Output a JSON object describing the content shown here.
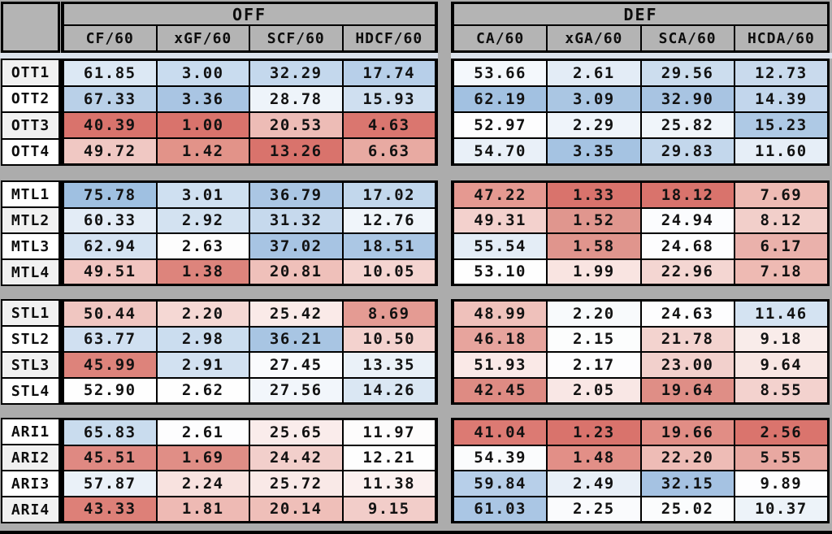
{
  "palette": {
    "canvas": "#acacac",
    "header_bg": "#b4b4b4",
    "grid_line": "#000000",
    "text": "#121212",
    "gap_strip": "#dbe2ec",
    "strong_blue": "#9fc0e1",
    "strong_red": "#d9736c",
    "neutral_white": "#fdfdfe",
    "label_bg_gray": "#f1f1f1",
    "label_bg_white": "#ffffff"
  },
  "header": {
    "corner_label": "",
    "groups": [
      {
        "label": "OFF",
        "columns": [
          "CF/60",
          "xGF/60",
          "SCF/60",
          "HDCF/60"
        ]
      },
      {
        "label": "DEF",
        "columns": [
          "CA/60",
          "xGA/60",
          "SCA/60",
          "HCDA/60"
        ]
      }
    ]
  },
  "blocks": [
    {
      "team": "OTT",
      "rows": [
        {
          "label": "OTT1",
          "label_bg": "#f1f1f1",
          "off": [
            {
              "v": "61.85",
              "c": "#dce8f4"
            },
            {
              "v": "3.00",
              "c": "#c9dcef"
            },
            {
              "v": "32.29",
              "c": "#c4d8ed"
            },
            {
              "v": "17.74",
              "c": "#b7cfe9"
            }
          ],
          "def": [
            {
              "v": "53.66",
              "c": "#f4f8fc"
            },
            {
              "v": "2.61",
              "c": "#e3ecf6"
            },
            {
              "v": "29.56",
              "c": "#ccddee"
            },
            {
              "v": "12.73",
              "c": "#c9daed"
            }
          ]
        },
        {
          "label": "OTT2",
          "label_bg": "#ffffff",
          "off": [
            {
              "v": "67.33",
              "c": "#b9d0e8"
            },
            {
              "v": "3.36",
              "c": "#a9c5e3"
            },
            {
              "v": "28.78",
              "c": "#eef4fa"
            },
            {
              "v": "15.93",
              "c": "#cfdff0"
            }
          ],
          "def": [
            {
              "v": "62.19",
              "c": "#a2c1e1"
            },
            {
              "v": "3.09",
              "c": "#aac6e3"
            },
            {
              "v": "32.90",
              "c": "#a8c4e2"
            },
            {
              "v": "14.39",
              "c": "#c2d6ec"
            }
          ]
        },
        {
          "label": "OTT3",
          "label_bg": "#f1f1f1",
          "off": [
            {
              "v": "40.39",
              "c": "#d9736c"
            },
            {
              "v": "1.00",
              "c": "#d9736c"
            },
            {
              "v": "20.53",
              "c": "#edbcb6"
            },
            {
              "v": "4.63",
              "c": "#da766f"
            }
          ],
          "def": [
            {
              "v": "52.97",
              "c": "#fdfdfe"
            },
            {
              "v": "2.29",
              "c": "#eff4fa"
            },
            {
              "v": "25.82",
              "c": "#f0f5fa"
            },
            {
              "v": "15.23",
              "c": "#aec9e5"
            }
          ]
        },
        {
          "label": "OTT4",
          "label_bg": "#ffffff",
          "off": [
            {
              "v": "49.72",
              "c": "#f0c8c3"
            },
            {
              "v": "1.42",
              "c": "#e29389"
            },
            {
              "v": "13.26",
              "c": "#d9736c"
            },
            {
              "v": "6.63",
              "c": "#e8aaa2"
            }
          ],
          "def": [
            {
              "v": "54.70",
              "c": "#e9f0f8"
            },
            {
              "v": "3.35",
              "c": "#a5c3e2"
            },
            {
              "v": "29.83",
              "c": "#c3d7ec"
            },
            {
              "v": "11.60",
              "c": "#e6eef7"
            }
          ]
        }
      ]
    },
    {
      "team": "MTL",
      "rows": [
        {
          "label": "MTL1",
          "label_bg": "#ffffff",
          "off": [
            {
              "v": "75.78",
              "c": "#9fc0e1"
            },
            {
              "v": "3.01",
              "c": "#cfe0f1"
            },
            {
              "v": "36.79",
              "c": "#aac6e4"
            },
            {
              "v": "17.02",
              "c": "#c2d7ec"
            }
          ],
          "def": [
            {
              "v": "47.22",
              "c": "#e59991"
            },
            {
              "v": "1.33",
              "c": "#d9736c"
            },
            {
              "v": "18.12",
              "c": "#d9736c"
            },
            {
              "v": "7.69",
              "c": "#eebbb4"
            }
          ]
        },
        {
          "label": "MTL2",
          "label_bg": "#f1f1f1",
          "off": [
            {
              "v": "60.33",
              "c": "#e3ecf6"
            },
            {
              "v": "2.92",
              "c": "#d3e2f1"
            },
            {
              "v": "31.32",
              "c": "#c6d9ed"
            },
            {
              "v": "12.76",
              "c": "#f0f5fa"
            }
          ],
          "def": [
            {
              "v": "49.31",
              "c": "#f3d1cd"
            },
            {
              "v": "1.52",
              "c": "#e0968e"
            },
            {
              "v": "24.94",
              "c": "#fbfcfe"
            },
            {
              "v": "8.12",
              "c": "#f2cfca"
            }
          ]
        },
        {
          "label": "MTL3",
          "label_bg": "#ffffff",
          "off": [
            {
              "v": "62.94",
              "c": "#d4e3f2"
            },
            {
              "v": "2.63",
              "c": "#fdfdfd"
            },
            {
              "v": "37.02",
              "c": "#a7c4e3"
            },
            {
              "v": "18.51",
              "c": "#abc7e4"
            }
          ],
          "def": [
            {
              "v": "55.54",
              "c": "#e4edf6"
            },
            {
              "v": "1.58",
              "c": "#e0958d"
            },
            {
              "v": "24.68",
              "c": "#fdfdfe"
            },
            {
              "v": "6.17",
              "c": "#eab1ab"
            }
          ]
        },
        {
          "label": "MTL4",
          "label_bg": "#f1f1f1",
          "off": [
            {
              "v": "49.51",
              "c": "#f1c5c0"
            },
            {
              "v": "1.38",
              "c": "#dd847c"
            },
            {
              "v": "20.81",
              "c": "#efc0ba"
            },
            {
              "v": "10.05",
              "c": "#f4d4d0"
            }
          ],
          "def": [
            {
              "v": "53.10",
              "c": "#fefefe"
            },
            {
              "v": "1.99",
              "c": "#f9e4e1"
            },
            {
              "v": "22.96",
              "c": "#f4d6d2"
            },
            {
              "v": "7.18",
              "c": "#eebab3"
            }
          ]
        }
      ]
    },
    {
      "team": "STL",
      "rows": [
        {
          "label": "STL1",
          "label_bg": "#f1f1f1",
          "off": [
            {
              "v": "50.44",
              "c": "#f0c6c1"
            },
            {
              "v": "2.20",
              "c": "#f5d8d4"
            },
            {
              "v": "25.42",
              "c": "#faeae8"
            },
            {
              "v": "8.69",
              "c": "#e49b93"
            }
          ],
          "def": [
            {
              "v": "48.99",
              "c": "#efc1bb"
            },
            {
              "v": "2.20",
              "c": "#f8fafc"
            },
            {
              "v": "24.63",
              "c": "#fdfdfe"
            },
            {
              "v": "11.46",
              "c": "#d4e3f2"
            }
          ]
        },
        {
          "label": "STL2",
          "label_bg": "#ffffff",
          "off": [
            {
              "v": "63.77",
              "c": "#d0e0f1"
            },
            {
              "v": "2.98",
              "c": "#cbddef"
            },
            {
              "v": "36.21",
              "c": "#a8c5e3"
            },
            {
              "v": "10.50",
              "c": "#f3d2ce"
            }
          ],
          "def": [
            {
              "v": "46.18",
              "c": "#e7a49d"
            },
            {
              "v": "2.15",
              "c": "#fcfdfd"
            },
            {
              "v": "21.78",
              "c": "#f3d3cf"
            },
            {
              "v": "9.18",
              "c": "#f9ecea"
            }
          ]
        },
        {
          "label": "STL3",
          "label_bg": "#f1f1f1",
          "off": [
            {
              "v": "45.99",
              "c": "#dd837b"
            },
            {
              "v": "2.91",
              "c": "#d2e1f1"
            },
            {
              "v": "27.45",
              "c": "#fafbfd"
            },
            {
              "v": "13.35",
              "c": "#eaf1f8"
            }
          ],
          "def": [
            {
              "v": "51.93",
              "c": "#fae9e7"
            },
            {
              "v": "2.17",
              "c": "#fdfdfe"
            },
            {
              "v": "23.00",
              "c": "#f2d0cc"
            },
            {
              "v": "9.64",
              "c": "#f8e6e3"
            }
          ]
        },
        {
          "label": "STL4",
          "label_bg": "#ffffff",
          "off": [
            {
              "v": "52.90",
              "c": "#fefefe"
            },
            {
              "v": "2.62",
              "c": "#fefefe"
            },
            {
              "v": "27.56",
              "c": "#f2f6fb"
            },
            {
              "v": "14.26",
              "c": "#dae7f3"
            }
          ],
          "def": [
            {
              "v": "42.45",
              "c": "#de8b83"
            },
            {
              "v": "2.05",
              "c": "#f9e7e5"
            },
            {
              "v": "19.64",
              "c": "#df8e86"
            },
            {
              "v": "8.55",
              "c": "#f3d2ce"
            }
          ]
        }
      ]
    },
    {
      "team": "ARI",
      "rows": [
        {
          "label": "ARI1",
          "label_bg": "#ffffff",
          "off": [
            {
              "v": "65.83",
              "c": "#c9dcee"
            },
            {
              "v": "2.61",
              "c": "#fdfdfe"
            },
            {
              "v": "25.65",
              "c": "#faeceb"
            },
            {
              "v": "11.97",
              "c": "#fdfcfc"
            }
          ],
          "def": [
            {
              "v": "41.04",
              "c": "#dc7a73"
            },
            {
              "v": "1.23",
              "c": "#d9736c"
            },
            {
              "v": "19.66",
              "c": "#e18d85"
            },
            {
              "v": "2.56",
              "c": "#da746d"
            }
          ]
        },
        {
          "label": "ARI2",
          "label_bg": "#f1f1f1",
          "off": [
            {
              "v": "45.51",
              "c": "#df8982"
            },
            {
              "v": "1.69",
              "c": "#e08e86"
            },
            {
              "v": "24.42",
              "c": "#f2cfcb"
            },
            {
              "v": "12.21",
              "c": "#fefefe"
            }
          ],
          "def": [
            {
              "v": "54.39",
              "c": "#fbfcfd"
            },
            {
              "v": "1.48",
              "c": "#e28f87"
            },
            {
              "v": "22.20",
              "c": "#eebcb6"
            },
            {
              "v": "5.55",
              "c": "#e8a8a1"
            }
          ]
        },
        {
          "label": "ARI3",
          "label_bg": "#ffffff",
          "off": [
            {
              "v": "57.87",
              "c": "#eaf1f8"
            },
            {
              "v": "2.24",
              "c": "#f8e2df"
            },
            {
              "v": "25.72",
              "c": "#f9e9e7"
            },
            {
              "v": "11.38",
              "c": "#fbf0ef"
            }
          ],
          "def": [
            {
              "v": "59.84",
              "c": "#b7cfe9"
            },
            {
              "v": "2.49",
              "c": "#e8eff7"
            },
            {
              "v": "32.15",
              "c": "#a5c2e2"
            },
            {
              "v": "9.89",
              "c": "#fdfdfe"
            }
          ]
        },
        {
          "label": "ARI4",
          "label_bg": "#f1f1f1",
          "off": [
            {
              "v": "43.33",
              "c": "#dd8078"
            },
            {
              "v": "1.81",
              "c": "#eebab4"
            },
            {
              "v": "20.14",
              "c": "#efbfb9"
            },
            {
              "v": "9.15",
              "c": "#f2cdc9"
            }
          ],
          "def": [
            {
              "v": "61.03",
              "c": "#aac6e4"
            },
            {
              "v": "2.25",
              "c": "#fafbfd"
            },
            {
              "v": "25.02",
              "c": "#fbfcfd"
            },
            {
              "v": "10.37",
              "c": "#edf3f9"
            }
          ]
        }
      ]
    }
  ],
  "chart_data": {
    "type": "heatmap",
    "title": "",
    "column_groups": [
      {
        "label": "OFF",
        "columns": [
          "CF/60",
          "xGF/60",
          "SCF/60",
          "HDCF/60"
        ]
      },
      {
        "label": "DEF",
        "columns": [
          "CA/60",
          "xGA/60",
          "SCA/60",
          "HCDA/60"
        ]
      }
    ],
    "columns": [
      "CF/60",
      "xGF/60",
      "SCF/60",
      "HDCF/60",
      "CA/60",
      "xGA/60",
      "SCA/60",
      "HCDA/60"
    ],
    "rows": [
      "OTT1",
      "OTT2",
      "OTT3",
      "OTT4",
      "MTL1",
      "MTL2",
      "MTL3",
      "MTL4",
      "STL1",
      "STL2",
      "STL3",
      "STL4",
      "ARI1",
      "ARI2",
      "ARI3",
      "ARI4"
    ],
    "values": [
      [
        61.85,
        3.0,
        32.29,
        17.74,
        53.66,
        2.61,
        29.56,
        12.73
      ],
      [
        67.33,
        3.36,
        28.78,
        15.93,
        62.19,
        3.09,
        32.9,
        14.39
      ],
      [
        40.39,
        1.0,
        20.53,
        4.63,
        52.97,
        2.29,
        25.82,
        15.23
      ],
      [
        49.72,
        1.42,
        13.26,
        6.63,
        54.7,
        3.35,
        29.83,
        11.6
      ],
      [
        75.78,
        3.01,
        36.79,
        17.02,
        47.22,
        1.33,
        18.12,
        7.69
      ],
      [
        60.33,
        2.92,
        31.32,
        12.76,
        49.31,
        1.52,
        24.94,
        8.12
      ],
      [
        62.94,
        2.63,
        37.02,
        18.51,
        55.54,
        1.58,
        24.68,
        6.17
      ],
      [
        49.51,
        1.38,
        20.81,
        10.05,
        53.1,
        1.99,
        22.96,
        7.18
      ],
      [
        50.44,
        2.2,
        25.42,
        8.69,
        48.99,
        2.2,
        24.63,
        11.46
      ],
      [
        63.77,
        2.98,
        36.21,
        10.5,
        46.18,
        2.15,
        21.78,
        9.18
      ],
      [
        45.99,
        2.91,
        27.45,
        13.35,
        51.93,
        2.17,
        23.0,
        9.64
      ],
      [
        52.9,
        2.62,
        27.56,
        14.26,
        42.45,
        2.05,
        19.64,
        8.55
      ],
      [
        65.83,
        2.61,
        25.65,
        11.97,
        41.04,
        1.23,
        19.66,
        2.56
      ],
      [
        45.51,
        1.69,
        24.42,
        12.21,
        54.39,
        1.48,
        22.2,
        5.55
      ],
      [
        57.87,
        2.24,
        25.72,
        11.38,
        59.84,
        2.49,
        32.15,
        9.89
      ],
      [
        43.33,
        1.81,
        20.14,
        9.15,
        61.03,
        2.25,
        25.02,
        10.37
      ]
    ],
    "color_encoding": "blue = high value, red = low value, white = neutral",
    "legend_position": "none",
    "grid": true
  }
}
